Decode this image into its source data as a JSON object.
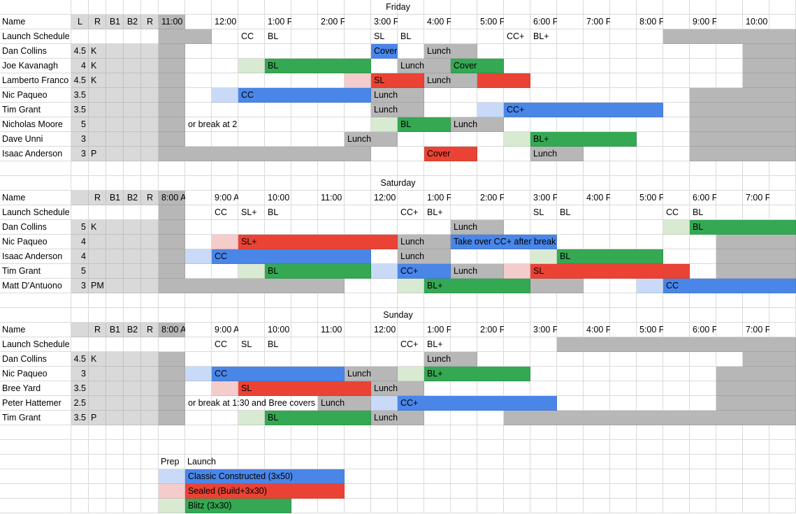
{
  "colors": {
    "gray": "#b7b7b7",
    "light_gray": "#d9d9d9",
    "blue": "#4a86e8",
    "light_blue": "#c9daf8",
    "red": "#ea4335",
    "light_red": "#f4cccc",
    "green": "#34a853",
    "light_green": "#d9ead3",
    "grid_line": "#dadada"
  },
  "sections": [
    {
      "title": "Friday",
      "header": {
        "name": "Name",
        "l": "L",
        "r": "R",
        "b1": "B1",
        "b2": "B2",
        "r2": "R"
      },
      "times": [
        "11:00",
        "12:00",
        "1:00 F",
        "2:00 F",
        "3:00 F",
        "4:00 F",
        "5:00 F",
        "6:00 F",
        "7:00 F",
        "8:00 F",
        "9:00 F",
        "10:00"
      ],
      "schedule_label": "Launch Schedule",
      "schedule_marks": [
        {
          "col": 3,
          "text": "CC"
        },
        {
          "col": 4,
          "text": "BL"
        },
        {
          "col": 8,
          "text": "SL"
        },
        {
          "col": 9,
          "text": "BL"
        },
        {
          "col": 13,
          "text": "CC+"
        },
        {
          "col": 14,
          "text": "BL+"
        }
      ],
      "schedule_gray": [
        [
          0,
          1
        ],
        [
          19,
          23
        ]
      ],
      "people": [
        {
          "name": "Dan Collins",
          "l": "4.5",
          "r": "K",
          "gray": [
            [
              0,
              0
            ],
            [
              22,
              23
            ]
          ],
          "blocks": [
            {
              "c": 8,
              "n": 1,
              "color": "blue",
              "text": "Cover"
            },
            {
              "c": 10,
              "n": 2,
              "color": "gray",
              "text": "Lunch"
            }
          ]
        },
        {
          "name": "Joe Kavanagh",
          "l": "4",
          "r": "K",
          "gray": [
            [
              0,
              0
            ],
            [
              22,
              23
            ]
          ],
          "blocks": [
            {
              "c": 3,
              "n": 1,
              "color": "light_green",
              "text": ""
            },
            {
              "c": 4,
              "n": 4,
              "color": "green",
              "text": "BL"
            },
            {
              "c": 9,
              "n": 2,
              "color": "gray",
              "text": "Lunch"
            },
            {
              "c": 11,
              "n": 2,
              "color": "green",
              "text": "Cover"
            }
          ]
        },
        {
          "name": "Lamberto Franco",
          "l": "4.5",
          "r": "K",
          "gray": [
            [
              0,
              0
            ],
            [
              22,
              23
            ]
          ],
          "blocks": [
            {
              "c": 7,
              "n": 1,
              "color": "light_red",
              "text": ""
            },
            {
              "c": 8,
              "n": 2,
              "color": "red",
              "text": "SL"
            },
            {
              "c": 10,
              "n": 2,
              "color": "gray",
              "text": "Lunch"
            },
            {
              "c": 12,
              "n": 2,
              "color": "red",
              "text": ""
            }
          ]
        },
        {
          "name": "Nic Paqueo",
          "l": "3.5",
          "r": "",
          "gray": [
            [
              0,
              0
            ],
            [
              20,
              23
            ]
          ],
          "blocks": [
            {
              "c": 2,
              "n": 1,
              "color": "light_blue",
              "text": ""
            },
            {
              "c": 3,
              "n": 5,
              "color": "blue",
              "text": "CC"
            },
            {
              "c": 8,
              "n": 2,
              "color": "gray",
              "text": "Lunch"
            }
          ]
        },
        {
          "name": "Tim Grant",
          "l": "3.5",
          "r": "",
          "gray": [
            [
              0,
              0
            ],
            [
              20,
              23
            ]
          ],
          "blocks": [
            {
              "c": 8,
              "n": 2,
              "color": "gray",
              "text": "Lunch"
            },
            {
              "c": 12,
              "n": 1,
              "color": "light_blue",
              "text": ""
            },
            {
              "c": 13,
              "n": 6,
              "color": "blue",
              "text": "CC+"
            }
          ]
        },
        {
          "name": "Nicholas Moore",
          "l": "5",
          "r": "",
          "gray": [
            [
              0,
              0
            ],
            [
              20,
              23
            ]
          ],
          "blocks": [
            {
              "c": 8,
              "n": 1,
              "color": "light_green",
              "text": ""
            },
            {
              "c": 9,
              "n": 2,
              "color": "green",
              "text": "BL"
            },
            {
              "c": 11,
              "n": 2,
              "color": "gray",
              "text": "Lunch"
            }
          ],
          "note": {
            "c": 1,
            "text": "or break at 2"
          }
        },
        {
          "name": "Dave Unni",
          "l": "3",
          "r": "",
          "gray": [
            [
              0,
              0
            ],
            [
              20,
              23
            ]
          ],
          "blocks": [
            {
              "c": 7,
              "n": 2,
              "color": "gray",
              "text": "Lunch"
            },
            {
              "c": 13,
              "n": 1,
              "color": "light_green",
              "text": ""
            },
            {
              "c": 14,
              "n": 4,
              "color": "green",
              "text": "BL+"
            }
          ]
        },
        {
          "name": "Isaac Anderson",
          "l": "3",
          "r": "P",
          "gray": [
            [
              0,
              7
            ],
            [
              20,
              23
            ]
          ],
          "blocks": [
            {
              "c": 10,
              "n": 2,
              "color": "red",
              "text": "Cover"
            },
            {
              "c": 14,
              "n": 2,
              "color": "gray",
              "text": "Lunch"
            }
          ]
        }
      ]
    },
    {
      "title": "Saturday",
      "header": {
        "name": "Name",
        "l": "",
        "r": "R",
        "b1": "B1",
        "b2": "B2",
        "r2": "R"
      },
      "times": [
        "8:00 A",
        "9:00 A",
        "10:00",
        "11:00",
        "12:00",
        "1:00 F",
        "2:00 F",
        "3:00 F",
        "4:00 F",
        "5:00 F",
        "6:00 F",
        "7:00 F"
      ],
      "schedule_label": "Launch Schedule",
      "schedule_marks": [
        {
          "col": 2,
          "text": "CC"
        },
        {
          "col": 3,
          "text": "SL+"
        },
        {
          "col": 4,
          "text": "BL"
        },
        {
          "col": 9,
          "text": "CC+"
        },
        {
          "col": 10,
          "text": "BL+"
        },
        {
          "col": 14,
          "text": "SL"
        },
        {
          "col": 15,
          "text": "BL"
        },
        {
          "col": 19,
          "text": "CC"
        },
        {
          "col": 20,
          "text": "BL"
        }
      ],
      "schedule_gray": [
        [
          0,
          0
        ]
      ],
      "people": [
        {
          "name": "Dan Collins",
          "l": "5",
          "r": "K",
          "gray": [
            [
              0,
              0
            ]
          ],
          "blocks": [
            {
              "c": 11,
              "n": 2,
              "color": "gray",
              "text": "Lunch"
            },
            {
              "c": 19,
              "n": 1,
              "color": "light_green",
              "text": ""
            },
            {
              "c": 20,
              "n": 4,
              "color": "green",
              "text": "BL"
            }
          ]
        },
        {
          "name": "Nic Paqueo",
          "l": "4",
          "r": "",
          "gray": [
            [
              0,
              0
            ],
            [
              21,
              23
            ]
          ],
          "blocks": [
            {
              "c": 2,
              "n": 1,
              "color": "light_red",
              "text": ""
            },
            {
              "c": 3,
              "n": 6,
              "color": "red",
              "text": "SL+"
            },
            {
              "c": 9,
              "n": 2,
              "color": "gray",
              "text": "Lunch"
            },
            {
              "c": 11,
              "n": 4,
              "color": "blue",
              "text": "Take over CC+ after break"
            }
          ]
        },
        {
          "name": "Isaac Anderson",
          "l": "4",
          "r": "",
          "gray": [
            [
              0,
              0
            ],
            [
              21,
              23
            ]
          ],
          "blocks": [
            {
              "c": 1,
              "n": 1,
              "color": "light_blue",
              "text": ""
            },
            {
              "c": 2,
              "n": 6,
              "color": "blue",
              "text": "CC"
            },
            {
              "c": 9,
              "n": 2,
              "color": "gray",
              "text": "Lunch"
            },
            {
              "c": 14,
              "n": 1,
              "color": "light_green",
              "text": ""
            },
            {
              "c": 15,
              "n": 4,
              "color": "green",
              "text": "BL"
            }
          ]
        },
        {
          "name": "Tim Grant",
          "l": "5",
          "r": "",
          "gray": [
            [
              0,
              0
            ],
            [
              21,
              23
            ]
          ],
          "blocks": [
            {
              "c": 3,
              "n": 1,
              "color": "light_green",
              "text": ""
            },
            {
              "c": 4,
              "n": 4,
              "color": "green",
              "text": "BL"
            },
            {
              "c": 8,
              "n": 1,
              "color": "light_blue",
              "text": ""
            },
            {
              "c": 9,
              "n": 2,
              "color": "blue",
              "text": "CC+"
            },
            {
              "c": 11,
              "n": 2,
              "color": "gray",
              "text": "Lunch"
            },
            {
              "c": 13,
              "n": 1,
              "color": "light_red",
              "text": ""
            },
            {
              "c": 14,
              "n": 6,
              "color": "red",
              "text": "SL"
            }
          ]
        },
        {
          "name": "Matt D'Antuono",
          "l": "3",
          "r": "PM",
          "gray": [
            [
              0,
              6
            ],
            [
              14,
              15
            ]
          ],
          "blocks": [
            {
              "c": 9,
              "n": 1,
              "color": "light_green",
              "text": ""
            },
            {
              "c": 10,
              "n": 4,
              "color": "green",
              "text": "BL+"
            },
            {
              "c": 18,
              "n": 1,
              "color": "light_blue",
              "text": ""
            },
            {
              "c": 19,
              "n": 5,
              "color": "blue",
              "text": "CC"
            }
          ]
        }
      ]
    },
    {
      "title": "Sunday",
      "header": {
        "name": "Name",
        "l": "",
        "r": "R",
        "b1": "B1",
        "b2": "B2",
        "r2": "R"
      },
      "times": [
        "8:00 A",
        "9:00 A",
        "10:00",
        "11:00",
        "12:00",
        "1:00 F",
        "2:00 F",
        "3:00 F",
        "4:00 F",
        "5:00 F",
        "6:00 F",
        "7:00 F"
      ],
      "schedule_label": "Launch Schedule",
      "schedule_marks": [
        {
          "col": 2,
          "text": "CC"
        },
        {
          "col": 3,
          "text": "SL"
        },
        {
          "col": 4,
          "text": "BL"
        },
        {
          "col": 9,
          "text": "CC+"
        },
        {
          "col": 10,
          "text": "BL+"
        }
      ],
      "schedule_gray": [
        [
          15,
          23
        ]
      ],
      "people": [
        {
          "name": "Dan Collins",
          "l": "4.5",
          "r": "K",
          "gray": [
            [
              0,
              0
            ],
            [
              22,
              23
            ]
          ],
          "blocks": [
            {
              "c": 10,
              "n": 2,
              "color": "gray",
              "text": "Lunch"
            }
          ]
        },
        {
          "name": "Nic Paqueo",
          "l": "3",
          "r": "",
          "gray": [
            [
              0,
              0
            ],
            [
              21,
              23
            ]
          ],
          "blocks": [
            {
              "c": 1,
              "n": 1,
              "color": "light_blue",
              "text": ""
            },
            {
              "c": 2,
              "n": 5,
              "color": "blue",
              "text": "CC"
            },
            {
              "c": 7,
              "n": 2,
              "color": "gray",
              "text": "Lunch"
            },
            {
              "c": 9,
              "n": 1,
              "color": "light_green",
              "text": ""
            },
            {
              "c": 10,
              "n": 4,
              "color": "green",
              "text": "BL+"
            }
          ]
        },
        {
          "name": "Bree Yard",
          "l": "3.5",
          "r": "",
          "gray": [
            [
              0,
              0
            ],
            [
              21,
              23
            ]
          ],
          "blocks": [
            {
              "c": 2,
              "n": 1,
              "color": "light_red",
              "text": ""
            },
            {
              "c": 3,
              "n": 5,
              "color": "red",
              "text": "SL"
            },
            {
              "c": 8,
              "n": 2,
              "color": "gray",
              "text": "Lunch"
            }
          ]
        },
        {
          "name": "Peter Hattemer",
          "l": "2.5",
          "r": "",
          "gray": [
            [
              0,
              0
            ],
            [
              21,
              23
            ]
          ],
          "blocks": [
            {
              "c": 6,
              "n": 2,
              "color": "gray",
              "text": "Lunch"
            },
            {
              "c": 8,
              "n": 1,
              "color": "light_blue",
              "text": ""
            },
            {
              "c": 9,
              "n": 6,
              "color": "blue",
              "text": "CC+"
            }
          ],
          "note": {
            "c": 1,
            "text": "or break at 1:30 and Bree covers"
          }
        },
        {
          "name": "Tim Grant",
          "l": "3.5",
          "r": "P",
          "gray": [
            [
              0,
              0
            ],
            [
              13,
              23
            ]
          ],
          "blocks": [
            {
              "c": 3,
              "n": 1,
              "color": "light_green",
              "text": ""
            },
            {
              "c": 4,
              "n": 4,
              "color": "green",
              "text": "BL"
            },
            {
              "c": 8,
              "n": 2,
              "color": "gray",
              "text": "Lunch"
            }
          ]
        }
      ]
    }
  ],
  "legend": {
    "prep_label": "Prep",
    "launch_label": "Launch",
    "items": [
      {
        "light": "light_blue",
        "full": "blue",
        "text": "Classic Constructed (3x50)"
      },
      {
        "light": "light_red",
        "full": "red",
        "text": "Sealed (Build+3x30)"
      },
      {
        "light": "light_green",
        "full": "green",
        "text": "Blitz (3x30)"
      }
    ]
  }
}
